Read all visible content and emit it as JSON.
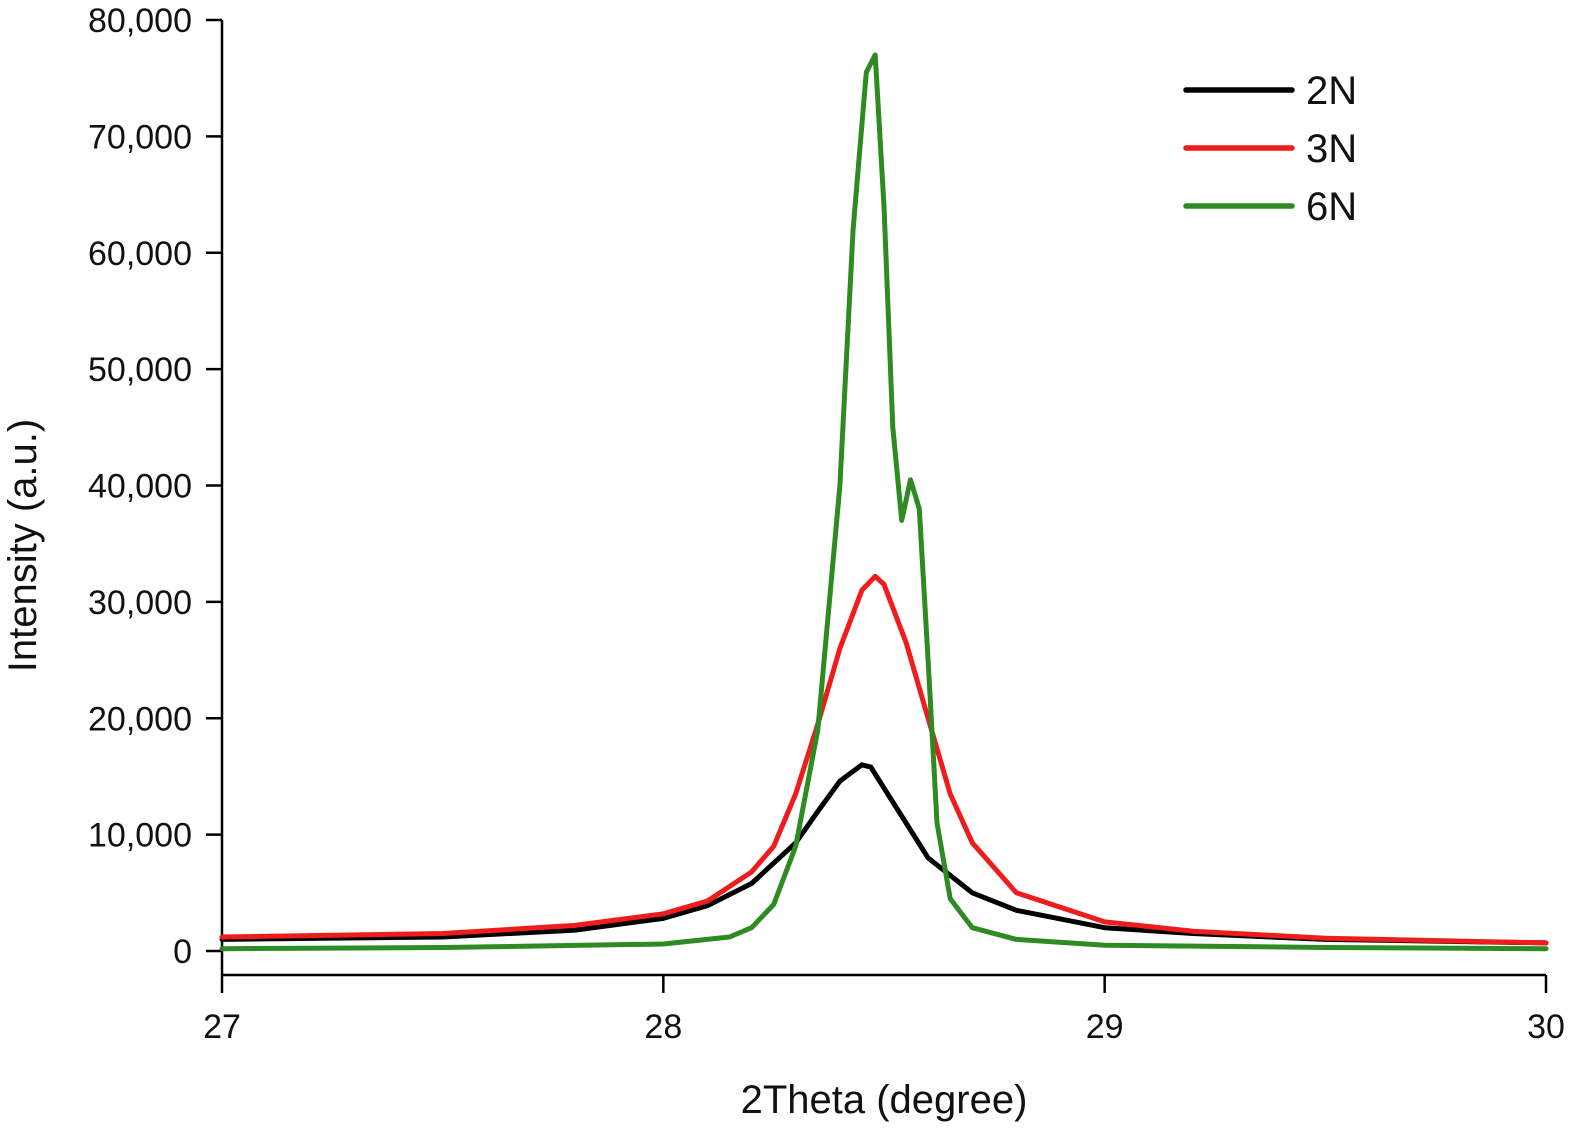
{
  "chart_data": {
    "type": "line",
    "title": "",
    "xlabel": "2Theta (degree)",
    "ylabel": "Intensity (a.u.)",
    "xlim": [
      27,
      30
    ],
    "ylim": [
      0,
      80000
    ],
    "x_ticks": [
      27,
      28,
      29,
      30
    ],
    "x_tick_labels": [
      "27",
      "28",
      "29",
      "30"
    ],
    "y_ticks": [
      0,
      10000,
      20000,
      30000,
      40000,
      50000,
      60000,
      70000,
      80000
    ],
    "y_tick_labels": [
      "0",
      "10,000",
      "20,000",
      "30,000",
      "40,000",
      "50,000",
      "60,000",
      "70,000",
      "80,000"
    ],
    "grid": false,
    "legend_position": "top-right",
    "series": [
      {
        "name": "2N",
        "color": "#000000",
        "x": [
          27.0,
          27.5,
          27.8,
          28.0,
          28.1,
          28.2,
          28.3,
          28.35,
          28.4,
          28.45,
          28.47,
          28.5,
          28.55,
          28.6,
          28.7,
          28.8,
          29.0,
          29.2,
          29.5,
          30.0
        ],
        "y": [
          1000,
          1200,
          1800,
          2800,
          3900,
          5800,
          9300,
          12000,
          14600,
          16000,
          15800,
          14000,
          11000,
          8000,
          5000,
          3500,
          2000,
          1500,
          1000,
          700
        ]
      },
      {
        "name": "3N",
        "color": "#ee1c1c",
        "x": [
          27.0,
          27.5,
          27.8,
          28.0,
          28.1,
          28.2,
          28.25,
          28.3,
          28.35,
          28.4,
          28.45,
          28.48,
          28.5,
          28.55,
          28.6,
          28.65,
          28.7,
          28.8,
          29.0,
          29.2,
          29.5,
          30.0
        ],
        "y": [
          1200,
          1500,
          2200,
          3200,
          4300,
          6800,
          9000,
          13500,
          19500,
          26000,
          31000,
          32200,
          31500,
          26500,
          20000,
          13500,
          9300,
          5000,
          2500,
          1700,
          1100,
          700
        ]
      },
      {
        "name": "6N",
        "color": "#2e8b22",
        "x": [
          27.0,
          27.5,
          28.0,
          28.15,
          28.2,
          28.25,
          28.3,
          28.35,
          28.4,
          28.43,
          28.46,
          28.48,
          28.5,
          28.52,
          28.54,
          28.56,
          28.58,
          28.6,
          28.62,
          28.65,
          28.7,
          28.8,
          29.0,
          29.5,
          30.0
        ],
        "y": [
          200,
          300,
          600,
          1200,
          2000,
          4000,
          9000,
          19000,
          40000,
          62000,
          75500,
          77000,
          64000,
          45000,
          37000,
          40500,
          38000,
          25000,
          11000,
          4500,
          2000,
          1000,
          500,
          300,
          200
        ]
      }
    ]
  }
}
